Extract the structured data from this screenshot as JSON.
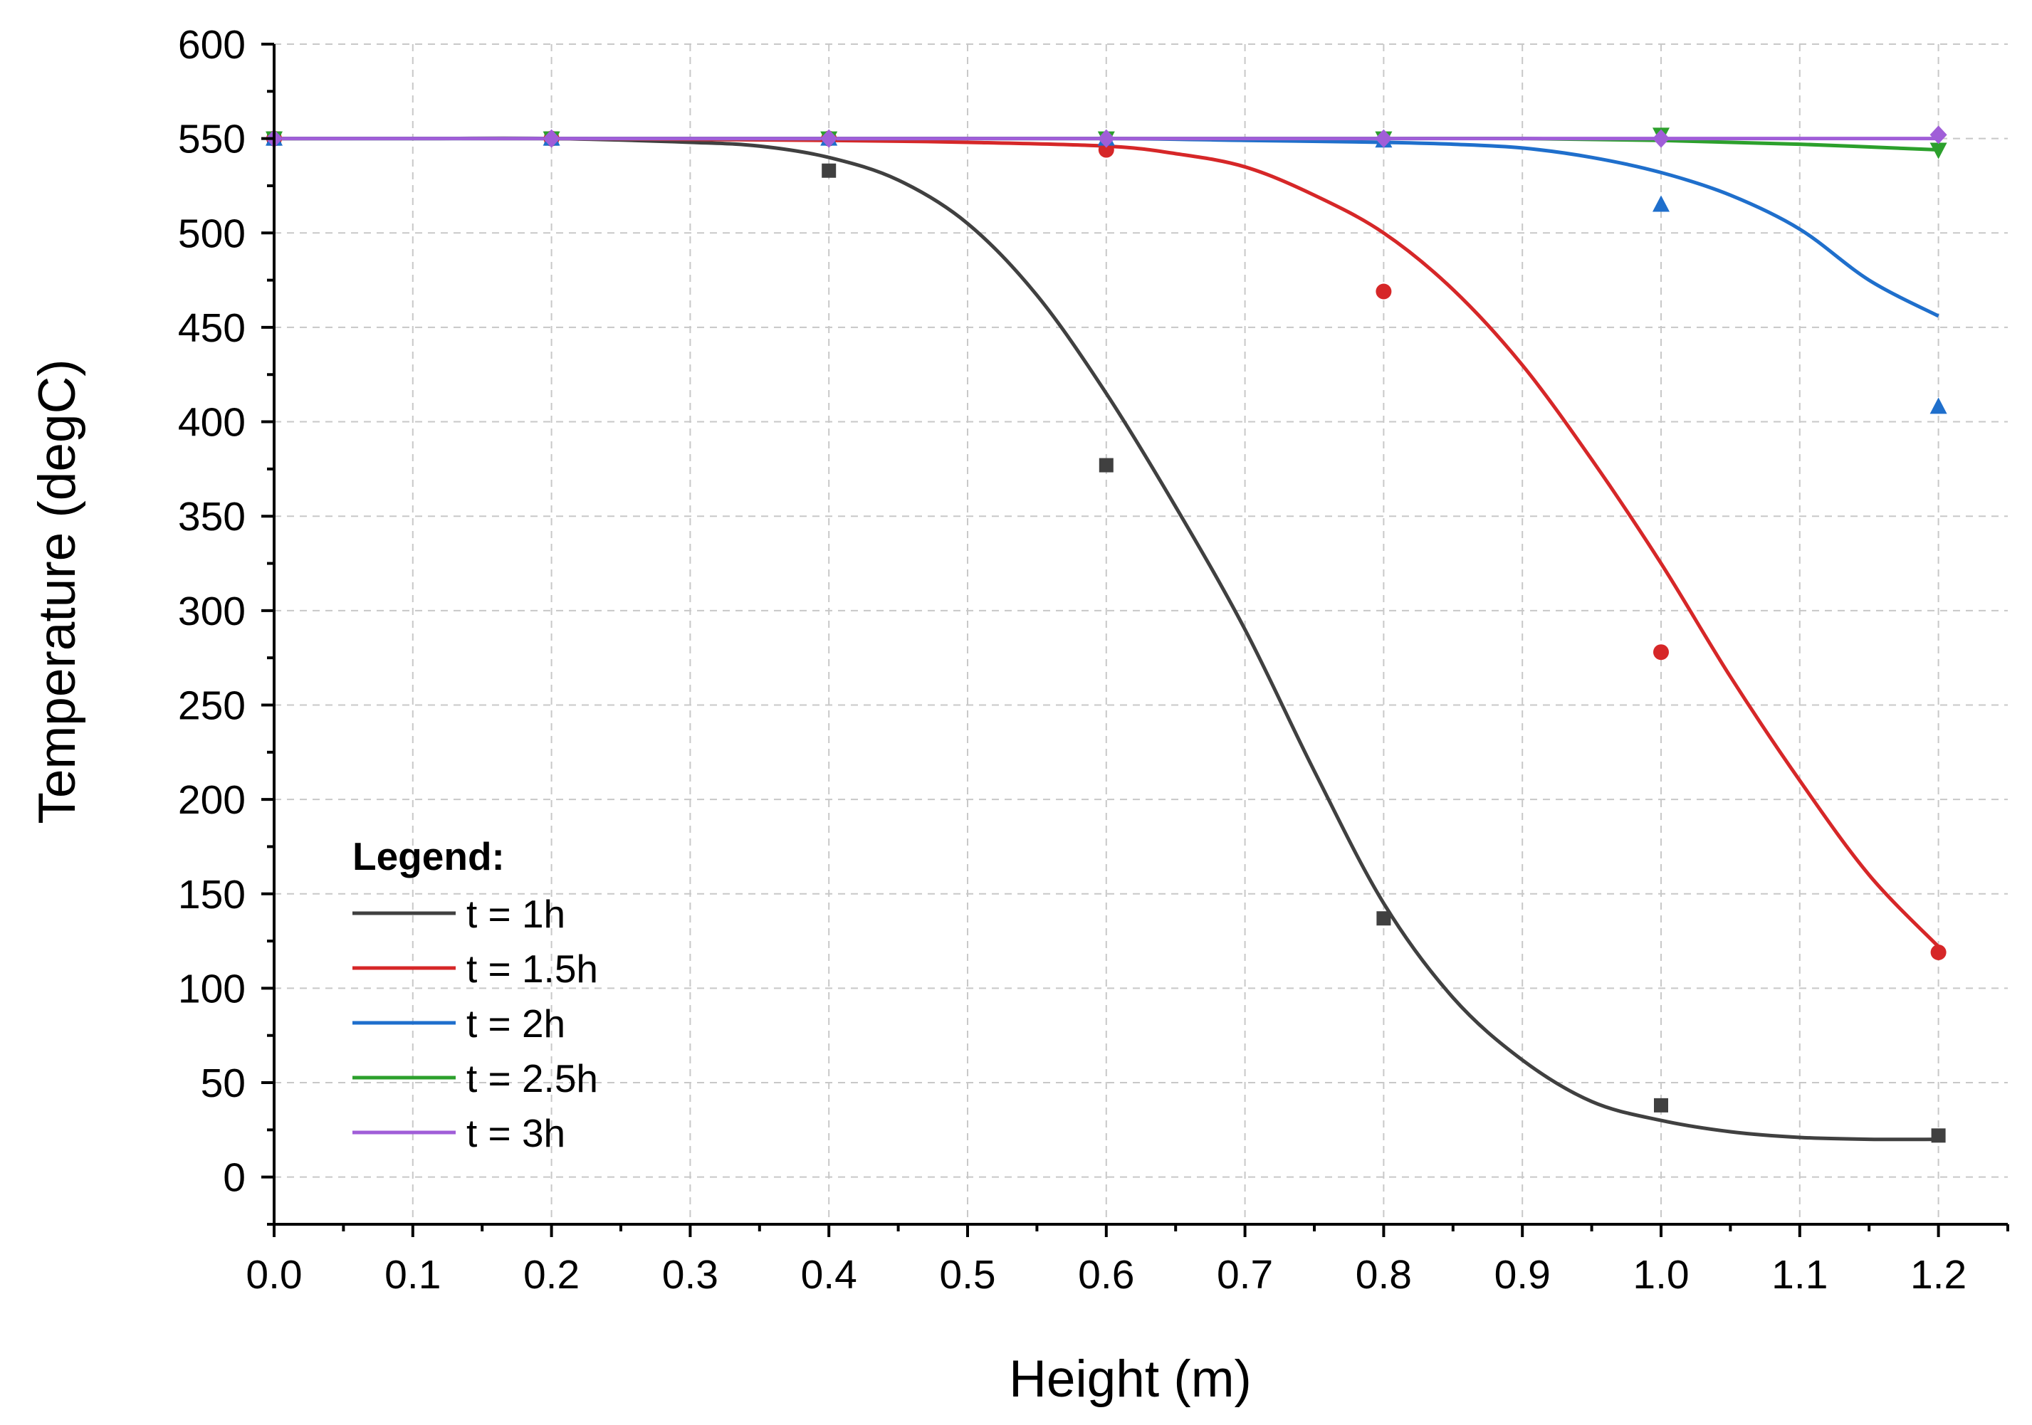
{
  "chart_data": {
    "type": "line",
    "xlabel": "Height (m)",
    "ylabel": "Temperature (degC)",
    "xlim": [
      0.0,
      1.25
    ],
    "ylim": [
      -25,
      600
    ],
    "x_ticks": [
      "0.0",
      "0.1",
      "0.2",
      "0.3",
      "0.4",
      "0.5",
      "0.6",
      "0.7",
      "0.8",
      "0.9",
      "1.0",
      "1.1",
      "1.2"
    ],
    "y_ticks": [
      "0",
      "50",
      "100",
      "150",
      "200",
      "250",
      "300",
      "350",
      "400",
      "450",
      "500",
      "550",
      "600"
    ],
    "grid": true,
    "legend": {
      "title": "Legend:",
      "position": "bottom-left"
    },
    "series": [
      {
        "name": "t = 1h",
        "color": "#404040",
        "marker": "square",
        "points": {
          "x": [
            0.0,
            0.2,
            0.4,
            0.6,
            0.8,
            1.0,
            1.2
          ],
          "y": [
            550,
            550,
            533,
            377,
            137,
            38,
            22
          ]
        },
        "curve": {
          "x": [
            0.0,
            0.1,
            0.2,
            0.3,
            0.35,
            0.4,
            0.45,
            0.5,
            0.55,
            0.6,
            0.65,
            0.7,
            0.75,
            0.8,
            0.85,
            0.9,
            0.95,
            1.0,
            1.05,
            1.1,
            1.15,
            1.2
          ],
          "y": [
            550,
            550,
            550,
            548,
            546,
            540,
            528,
            505,
            467,
            415,
            355,
            290,
            215,
            145,
            95,
            62,
            40,
            30,
            24,
            21,
            20,
            20
          ]
        }
      },
      {
        "name": "t = 1.5h",
        "color": "#d62728",
        "marker": "circle",
        "points": {
          "x": [
            0.0,
            0.2,
            0.4,
            0.6,
            0.8,
            1.0,
            1.2
          ],
          "y": [
            550,
            550,
            550,
            544,
            469,
            278,
            119
          ]
        },
        "curve": {
          "x": [
            0.0,
            0.2,
            0.4,
            0.5,
            0.6,
            0.65,
            0.7,
            0.75,
            0.8,
            0.85,
            0.9,
            0.95,
            1.0,
            1.05,
            1.1,
            1.15,
            1.2
          ],
          "y": [
            550,
            550,
            549,
            548,
            546,
            542,
            535,
            520,
            500,
            470,
            430,
            380,
            325,
            265,
            210,
            160,
            122
          ]
        }
      },
      {
        "name": "t = 2h",
        "color": "#1f6fcc",
        "marker": "triangle-up",
        "points": {
          "x": [
            0.0,
            0.2,
            0.4,
            0.6,
            0.8,
            1.0,
            1.2
          ],
          "y": [
            550,
            550,
            550,
            550,
            549,
            515,
            408
          ]
        },
        "curve": {
          "x": [
            0.0,
            0.2,
            0.4,
            0.6,
            0.7,
            0.8,
            0.85,
            0.9,
            0.95,
            1.0,
            1.05,
            1.1,
            1.15,
            1.2
          ],
          "y": [
            550,
            550,
            550,
            550,
            549,
            548,
            547,
            545,
            540,
            532,
            520,
            502,
            475,
            456
          ]
        }
      },
      {
        "name": "t = 2.5h",
        "color": "#2ca02c",
        "marker": "triangle-down",
        "points": {
          "x": [
            0.0,
            0.2,
            0.4,
            0.6,
            0.8,
            1.0,
            1.2
          ],
          "y": [
            550,
            550,
            550,
            550,
            550,
            552,
            544
          ]
        },
        "curve": {
          "x": [
            0.0,
            0.2,
            0.4,
            0.6,
            0.8,
            0.9,
            1.0,
            1.1,
            1.2
          ],
          "y": [
            550,
            550,
            550,
            550,
            550,
            550,
            549,
            547,
            544
          ]
        }
      },
      {
        "name": "t = 3h",
        "color": "#a05ed8",
        "marker": "diamond",
        "points": {
          "x": [
            0.0,
            0.2,
            0.4,
            0.6,
            0.8,
            1.0,
            1.2
          ],
          "y": [
            550,
            550,
            550,
            550,
            550,
            550,
            552
          ]
        },
        "curve": {
          "x": [
            0.0,
            0.2,
            0.4,
            0.6,
            0.8,
            1.0,
            1.2
          ],
          "y": [
            550,
            550,
            550,
            550,
            550,
            550,
            550
          ]
        }
      }
    ]
  }
}
